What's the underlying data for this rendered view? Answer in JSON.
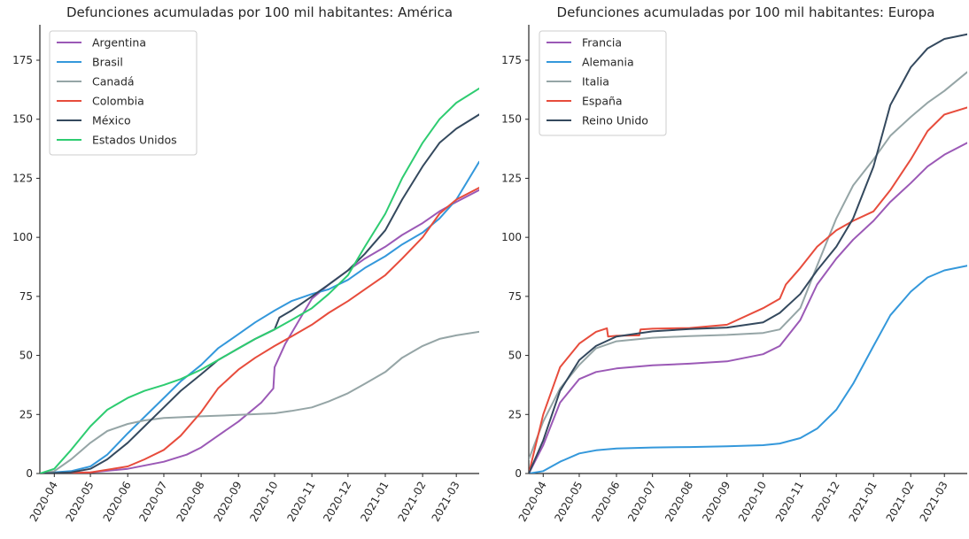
{
  "chart_data": [
    {
      "type": "line",
      "title": "Defunciones acumuladas por 100 mil habitantes: América",
      "xlabel": "",
      "ylabel": "",
      "ylim": [
        0,
        190
      ],
      "xlim": [
        "2020-03-20",
        "2021-03-20"
      ],
      "y_ticks": [
        0,
        25,
        50,
        75,
        100,
        125,
        150,
        175
      ],
      "x_ticks": [
        "2020-04",
        "2020-05",
        "2020-06",
        "2020-07",
        "2020-08",
        "2020-09",
        "2020-10",
        "2020-11",
        "2020-12",
        "2021-01",
        "2021-02",
        "2021-03"
      ],
      "grid": false,
      "legend_position": "top-left",
      "series": [
        {
          "name": "Argentina",
          "color": "#9b59b6",
          "x": [
            "2020-03-20",
            "2020-05-01",
            "2020-06-01",
            "2020-07-01",
            "2020-07-20",
            "2020-08-01",
            "2020-08-15",
            "2020-09-01",
            "2020-09-20",
            "2020-09-30",
            "2020-10-01",
            "2020-10-10",
            "2020-10-25",
            "2020-11-01",
            "2020-11-15",
            "2020-12-01",
            "2020-12-15",
            "2021-01-01",
            "2021-01-15",
            "2021-02-01",
            "2021-02-15",
            "2021-03-01",
            "2021-03-20"
          ],
          "y": [
            0,
            0.5,
            2,
            5,
            8,
            11,
            16,
            22,
            30,
            36,
            45,
            55,
            68,
            74,
            80,
            86,
            91,
            96,
            101,
            106,
            111,
            115,
            120
          ]
        },
        {
          "name": "Brasil",
          "color": "#3498db",
          "x": [
            "2020-03-20",
            "2020-04-15",
            "2020-05-01",
            "2020-05-15",
            "2020-06-01",
            "2020-06-15",
            "2020-07-01",
            "2020-07-15",
            "2020-08-01",
            "2020-08-15",
            "2020-09-01",
            "2020-09-15",
            "2020-10-01",
            "2020-10-15",
            "2020-11-01",
            "2020-11-15",
            "2020-12-01",
            "2020-12-15",
            "2021-01-01",
            "2021-01-15",
            "2021-02-01",
            "2021-02-15",
            "2021-03-01",
            "2021-03-20"
          ],
          "y": [
            0,
            1,
            3,
            8,
            17,
            24,
            32,
            39,
            46,
            53,
            59,
            64,
            69,
            73,
            76,
            78,
            82,
            87,
            92,
            97,
            102,
            108,
            116,
            132
          ]
        },
        {
          "name": "Canadá",
          "color": "#95a5a6",
          "x": [
            "2020-03-20",
            "2020-04-01",
            "2020-04-15",
            "2020-05-01",
            "2020-05-15",
            "2020-06-01",
            "2020-06-15",
            "2020-07-01",
            "2020-08-01",
            "2020-09-01",
            "2020-10-01",
            "2020-10-15",
            "2020-11-01",
            "2020-11-15",
            "2020-12-01",
            "2020-12-15",
            "2021-01-01",
            "2021-01-15",
            "2021-02-01",
            "2021-02-15",
            "2021-03-01",
            "2021-03-20"
          ],
          "y": [
            0,
            1,
            6,
            13,
            18,
            21,
            22.5,
            23.5,
            24.2,
            24.8,
            25.5,
            26.5,
            28,
            30.5,
            34,
            38,
            43,
            49,
            54,
            57,
            58.5,
            60
          ]
        },
        {
          "name": "Colombia",
          "color": "#e74c3c",
          "x": [
            "2020-03-20",
            "2020-05-01",
            "2020-06-01",
            "2020-06-15",
            "2020-07-01",
            "2020-07-15",
            "2020-08-01",
            "2020-08-15",
            "2020-09-01",
            "2020-09-15",
            "2020-10-01",
            "2020-10-15",
            "2020-11-01",
            "2020-11-15",
            "2020-12-01",
            "2020-12-15",
            "2021-01-01",
            "2021-01-15",
            "2021-02-01",
            "2021-02-15",
            "2021-03-01",
            "2021-03-20"
          ],
          "y": [
            0,
            0.5,
            3,
            6,
            10,
            16,
            26,
            36,
            44,
            49,
            54,
            58,
            63,
            68,
            73,
            78,
            84,
            91,
            100,
            110,
            116,
            121
          ]
        },
        {
          "name": "México",
          "color": "#34495e",
          "x": [
            "2020-03-20",
            "2020-04-15",
            "2020-05-01",
            "2020-05-15",
            "2020-06-01",
            "2020-06-15",
            "2020-07-01",
            "2020-07-15",
            "2020-08-01",
            "2020-08-15",
            "2020-09-01",
            "2020-09-15",
            "2020-10-01",
            "2020-10-05",
            "2020-10-15",
            "2020-11-01",
            "2020-11-15",
            "2020-12-01",
            "2020-12-15",
            "2021-01-01",
            "2021-01-15",
            "2021-02-01",
            "2021-02-15",
            "2021-03-01",
            "2021-03-20"
          ],
          "y": [
            0,
            0.5,
            2,
            6,
            13,
            20,
            28,
            35,
            42,
            48,
            53,
            57,
            61,
            66,
            69,
            75,
            80,
            86,
            93,
            103,
            116,
            130,
            140,
            146,
            152
          ]
        },
        {
          "name": "Estados Unidos",
          "color": "#2ecc71",
          "x": [
            "2020-03-20",
            "2020-04-01",
            "2020-04-15",
            "2020-05-01",
            "2020-05-15",
            "2020-06-01",
            "2020-06-15",
            "2020-07-01",
            "2020-07-15",
            "2020-08-01",
            "2020-08-15",
            "2020-09-01",
            "2020-09-15",
            "2020-10-01",
            "2020-10-15",
            "2020-11-01",
            "2020-11-15",
            "2020-12-01",
            "2020-12-15",
            "2021-01-01",
            "2021-01-15",
            "2021-02-01",
            "2021-02-15",
            "2021-03-01",
            "2021-03-20"
          ],
          "y": [
            0,
            2,
            10,
            20,
            27,
            32,
            35,
            37.5,
            40,
            44,
            48,
            53,
            57,
            61,
            65,
            70,
            76,
            84,
            96,
            110,
            125,
            140,
            150,
            157,
            163
          ]
        }
      ]
    },
    {
      "type": "line",
      "title": "Defunciones acumuladas por 100 mil habitantes: Europa",
      "xlabel": "",
      "ylabel": "",
      "ylim": [
        0,
        190
      ],
      "xlim": [
        "2020-03-20",
        "2021-03-20"
      ],
      "y_ticks": [
        0,
        25,
        50,
        75,
        100,
        125,
        150,
        175
      ],
      "x_ticks": [
        "2020-04",
        "2020-05",
        "2020-06",
        "2020-07",
        "2020-08",
        "2020-09",
        "2020-10",
        "2020-11",
        "2020-12",
        "2021-01",
        "2021-02",
        "2021-03"
      ],
      "grid": false,
      "legend_position": "top-left",
      "series": [
        {
          "name": "Francia",
          "color": "#9b59b6",
          "x": [
            "2020-03-20",
            "2020-04-01",
            "2020-04-15",
            "2020-05-01",
            "2020-05-15",
            "2020-06-01",
            "2020-07-01",
            "2020-08-01",
            "2020-09-01",
            "2020-10-01",
            "2020-10-15",
            "2020-11-01",
            "2020-11-15",
            "2020-12-01",
            "2020-12-15",
            "2021-01-01",
            "2021-01-15",
            "2021-02-01",
            "2021-02-15",
            "2021-03-01",
            "2021-03-20"
          ],
          "y": [
            0,
            12,
            30,
            40,
            43,
            44.5,
            45.8,
            46.5,
            47.5,
            50.5,
            54,
            65,
            80,
            91,
            99,
            107,
            115,
            123,
            130,
            135,
            140
          ]
        },
        {
          "name": "Alemania",
          "color": "#3498db",
          "x": [
            "2020-03-20",
            "2020-04-01",
            "2020-04-15",
            "2020-05-01",
            "2020-05-15",
            "2020-06-01",
            "2020-07-01",
            "2020-08-01",
            "2020-09-01",
            "2020-10-01",
            "2020-10-15",
            "2020-11-01",
            "2020-11-15",
            "2020-12-01",
            "2020-12-15",
            "2021-01-01",
            "2021-01-15",
            "2021-02-01",
            "2021-02-15",
            "2021-03-01",
            "2021-03-20"
          ],
          "y": [
            0,
            1,
            5,
            8.5,
            9.8,
            10.6,
            11,
            11.2,
            11.5,
            12,
            12.7,
            15,
            19,
            27,
            38,
            54,
            67,
            77,
            83,
            86,
            88
          ]
        },
        {
          "name": "Italia",
          "color": "#95a5a6",
          "x": [
            "2020-03-20",
            "2020-04-01",
            "2020-04-15",
            "2020-05-01",
            "2020-05-15",
            "2020-06-01",
            "2020-07-01",
            "2020-08-01",
            "2020-09-01",
            "2020-10-01",
            "2020-10-15",
            "2020-11-01",
            "2020-11-15",
            "2020-12-01",
            "2020-12-15",
            "2021-01-01",
            "2021-01-15",
            "2021-02-01",
            "2021-02-15",
            "2021-03-01",
            "2021-03-20"
          ],
          "y": [
            6,
            22,
            36,
            46,
            53,
            56,
            57.5,
            58.2,
            58.7,
            59.5,
            61,
            70,
            88,
            108,
            122,
            133,
            143,
            151,
            157,
            162,
            170
          ]
        },
        {
          "name": "España",
          "color": "#e74c3c",
          "x": [
            "2020-03-20",
            "2020-04-01",
            "2020-04-15",
            "2020-05-01",
            "2020-05-15",
            "2020-05-24",
            "2020-05-25",
            "2020-06-01",
            "2020-06-20",
            "2020-06-21",
            "2020-07-01",
            "2020-08-01",
            "2020-09-01",
            "2020-10-01",
            "2020-10-15",
            "2020-10-20",
            "2020-11-01",
            "2020-11-15",
            "2020-12-01",
            "2020-12-15",
            "2021-01-01",
            "2021-01-15",
            "2021-02-01",
            "2021-02-15",
            "2021-03-01",
            "2021-03-20"
          ],
          "y": [
            0,
            25,
            45,
            55,
            60,
            61.5,
            58,
            58.3,
            58.5,
            61,
            61.3,
            61.6,
            63,
            70,
            74,
            80,
            87,
            96,
            103,
            107,
            111,
            120,
            133,
            145,
            152,
            155
          ]
        },
        {
          "name": "Reino Unido",
          "color": "#34495e",
          "x": [
            "2020-03-20",
            "2020-04-01",
            "2020-04-15",
            "2020-05-01",
            "2020-05-15",
            "2020-06-01",
            "2020-07-01",
            "2020-08-01",
            "2020-09-01",
            "2020-10-01",
            "2020-10-15",
            "2020-11-01",
            "2020-11-15",
            "2020-12-01",
            "2020-12-15",
            "2021-01-01",
            "2021-01-15",
            "2021-02-01",
            "2021-02-15",
            "2021-03-01",
            "2021-03-20"
          ],
          "y": [
            0,
            14,
            35,
            48,
            54,
            58,
            60.2,
            61.2,
            61.8,
            64,
            68,
            76,
            86,
            96,
            108,
            130,
            156,
            172,
            180,
            184,
            186
          ]
        }
      ]
    }
  ]
}
